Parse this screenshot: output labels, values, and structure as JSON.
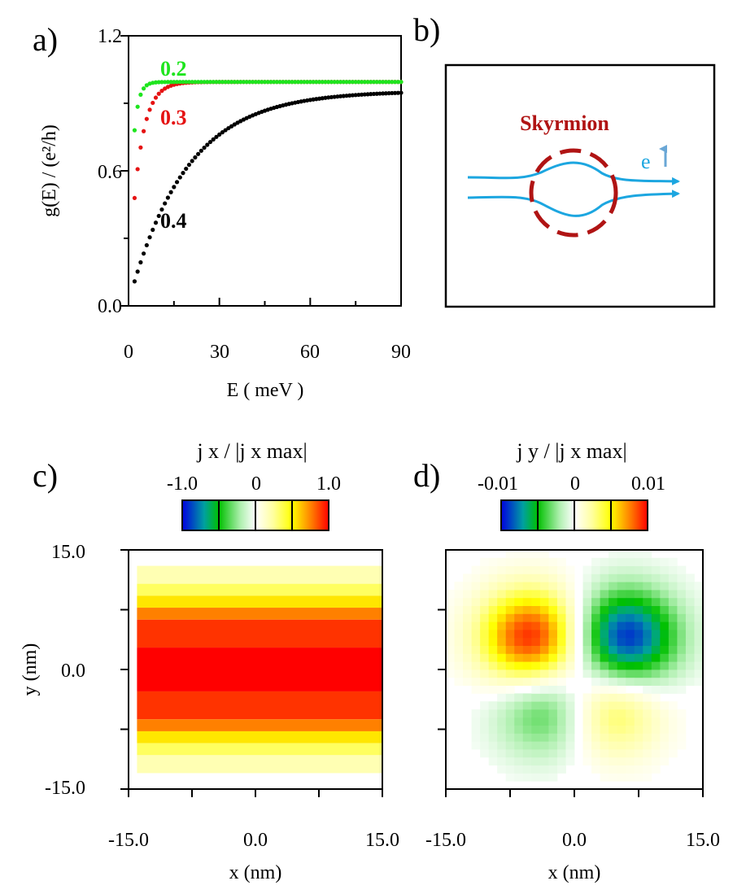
{
  "colors": {
    "series_0_2": "#1ee51e",
    "series_0_3": "#e51313",
    "series_0_4": "#000000",
    "electron_path": "#1ca6e0",
    "skyrmion": "#b01414"
  },
  "panel_a": {
    "label": "a)",
    "chart_data": {
      "type": "scatter",
      "xlabel": "E ( meV )",
      "ylabel": "g(E) / (e²/h)",
      "xlim": [
        0,
        90
      ],
      "ylim": [
        0,
        1.2
      ],
      "xticks": [
        "0",
        "30",
        "60",
        "90"
      ],
      "yticks": [
        "0.0",
        "0.6",
        "1.2"
      ],
      "series": [
        {
          "name": "0.2",
          "color": "#1ee51e",
          "tau": 1.5,
          "gmax": 0.995,
          "x_start": 2,
          "x_end": 90,
          "x_step": 1
        },
        {
          "name": "0.3",
          "color": "#e51313",
          "tau": 3.5,
          "gmax": 0.995,
          "x_start": 2,
          "x_end": 90,
          "x_step": 1
        },
        {
          "name": "0.4",
          "color": "#000000",
          "tau": 19,
          "gmax": 0.955,
          "x_start": 2,
          "x_end": 90,
          "x_step": 1
        }
      ]
    }
  },
  "panel_b": {
    "label": "b)",
    "skyrmion_label": "Skyrmion",
    "electron_label": "e"
  },
  "panel_c": {
    "label": "c)",
    "colorbar_title": "j x / |j x max|",
    "colorbar_ticks": [
      "-1.0",
      "0",
      "1.0"
    ],
    "chart_data": {
      "type": "heatmap",
      "xlabel": "x (nm)",
      "ylabel": "y (nm)",
      "xlim": [
        -15,
        15
      ],
      "ylim": [
        -15,
        15
      ],
      "xticks": [
        "-15.0",
        "0.0",
        "15.0"
      ],
      "yticks": [
        "15.0",
        "0.0",
        "-15.0"
      ],
      "color_range": [
        -1.0,
        1.0
      ],
      "rows_y": [
        11.5,
        10,
        8.5,
        7,
        5.5,
        0,
        -5.5,
        -7,
        -8.5,
        -10,
        -11.5
      ],
      "rows_value": [
        0.2,
        0.35,
        0.55,
        0.75,
        0.9,
        1.0,
        0.9,
        0.75,
        0.55,
        0.35,
        0.2
      ]
    }
  },
  "panel_d": {
    "label": "d)",
    "colorbar_title": "j y / |j x max|",
    "colorbar_ticks": [
      "-0.01",
      "0",
      "0.01"
    ],
    "chart_data": {
      "type": "heatmap",
      "xlabel": "x (nm)",
      "ylabel": "",
      "xlim": [
        -15,
        15
      ],
      "ylim": [
        -15,
        15
      ],
      "xticks": [
        "-15.0",
        "0.0",
        "15.0"
      ],
      "color_range": [
        -0.01,
        0.01
      ],
      "lobes": [
        {
          "x": -5,
          "y": 4,
          "amplitude": 0.0095
        },
        {
          "x": 6,
          "y": 4,
          "amplitude": -0.0095
        },
        {
          "x": -3,
          "y": -5,
          "amplitude": -0.0045
        },
        {
          "x": 4,
          "y": -5,
          "amplitude": 0.0045
        }
      ]
    }
  }
}
